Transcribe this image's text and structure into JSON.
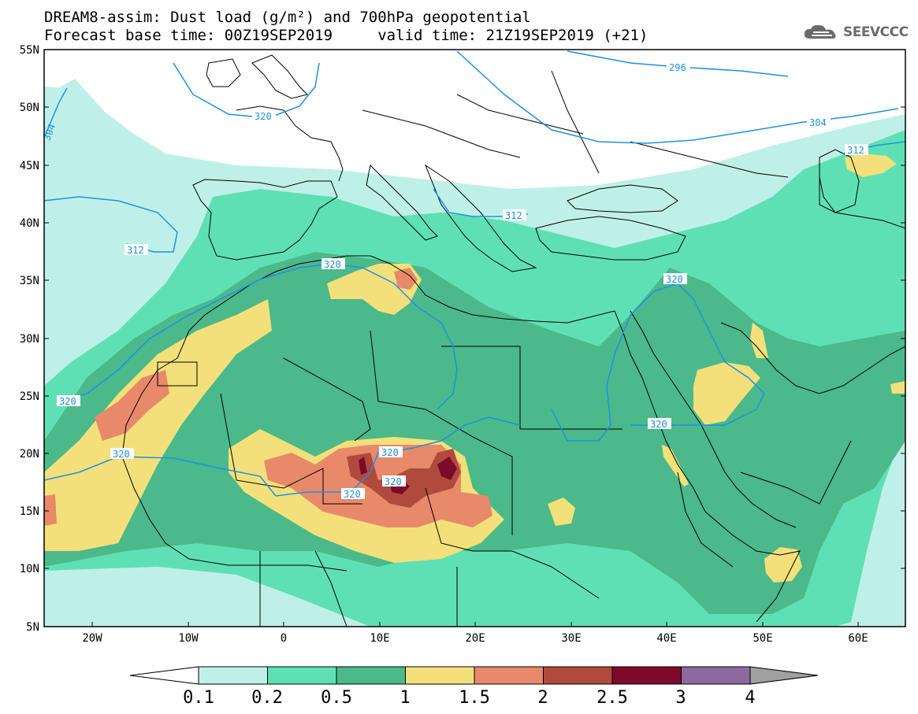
{
  "title": {
    "line1": "DREAM8-assim: Dust load (g/m²) and 700hPa geopotential",
    "line2": "Forecast base time: 00Z19SEP2019     valid time: 21Z19SEP2019 (+21)"
  },
  "logo": {
    "text": "SEEVCCC",
    "icon": "cloud-icon"
  },
  "map": {
    "lat_labels": [
      "55N",
      "50N",
      "45N",
      "40N",
      "35N",
      "30N",
      "25N",
      "20N",
      "15N",
      "10N",
      "5N"
    ],
    "lon_labels": [
      "20W",
      "10W",
      "0",
      "10E",
      "20E",
      "30E",
      "40E",
      "50E",
      "60E"
    ],
    "contour_labels": [
      "296",
      "304",
      "304",
      "312",
      "312",
      "320",
      "320",
      "320",
      "320",
      "320",
      "320",
      "320",
      "320",
      "312"
    ]
  },
  "colorbar": {
    "ticks": [
      "0.1",
      "0.2",
      "0.5",
      "1",
      "1.5",
      "2",
      "2.5",
      "3",
      "4"
    ],
    "colors": [
      "#bff0e8",
      "#5fe0b4",
      "#4bb98a",
      "#f3e07a",
      "#e8896a",
      "#b04a3d",
      "#7d0a2a",
      "#8c6a9e"
    ]
  },
  "colors": {
    "land_base": "#ffffff",
    "contour_line": "#1e90e6",
    "border_line": "#000000"
  }
}
